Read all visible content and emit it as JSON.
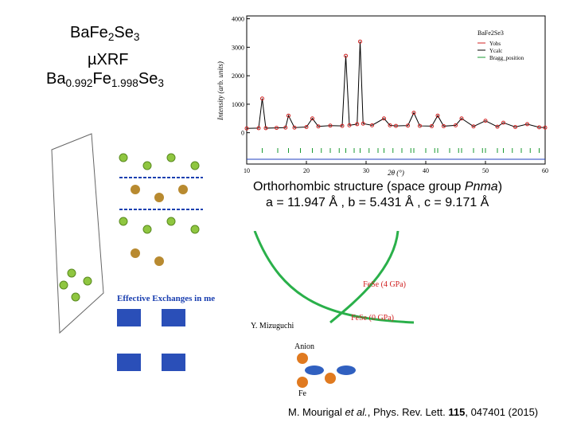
{
  "title": {
    "parts": [
      "BaFe",
      "2",
      "Se",
      "3"
    ]
  },
  "method": "µXRF",
  "composition": {
    "parts": [
      "Ba",
      "0.992",
      "Fe",
      "1.998",
      "Se",
      "3"
    ]
  },
  "structure": {
    "line1": {
      "parts": [
        "Orthorhombic structure (space group ",
        "Pnma",
        ")"
      ]
    },
    "line2": "a = 11.947 Å , b = 5.431 Å ,  c = 9.171 Å"
  },
  "citation": {
    "parts": [
      "M. Mourigal ",
      "et al.",
      ", Phys. Rev. Lett. ",
      "115",
      ", 047401 (2015)"
    ]
  },
  "xrd": {
    "y_label": "Intensity (arb. units)",
    "x_label": "2θ (°)",
    "legend": {
      "title": "BaFe2Se3",
      "entries": [
        "Yobs",
        "Ycalc",
        "Bragg_position"
      ]
    },
    "xlim": [
      10,
      60
    ],
    "ylim": [
      -1100,
      4100
    ],
    "xticks": [
      10,
      20,
      30,
      40,
      50,
      60
    ],
    "yticks": [
      0,
      1000,
      2000,
      3000,
      4000
    ],
    "x": [
      10,
      12,
      12.6,
      13.2,
      15,
      16.5,
      17,
      18,
      20,
      21,
      22,
      24,
      26,
      26.6,
      27.2,
      28.5,
      29,
      29.5,
      31,
      33,
      34,
      35,
      37,
      38,
      39,
      41,
      42,
      43,
      45,
      46,
      48,
      50,
      52,
      53,
      55,
      57,
      59,
      60
    ],
    "y": [
      150,
      160,
      1200,
      160,
      170,
      180,
      600,
      180,
      200,
      500,
      220,
      250,
      240,
      2700,
      260,
      300,
      3200,
      320,
      260,
      500,
      260,
      240,
      250,
      700,
      240,
      230,
      600,
      230,
      260,
      500,
      220,
      420,
      210,
      350,
      200,
      300,
      190,
      180
    ],
    "bragg": [
      12.6,
      15.2,
      17,
      19,
      21,
      22.5,
      24,
      25.5,
      26.6,
      28,
      29,
      30.5,
      32,
      33,
      34.5,
      36,
      37.5,
      38,
      40,
      41.5,
      42,
      44,
      45.5,
      46,
      48,
      49.5,
      50,
      52,
      53,
      54.5,
      56,
      57.5,
      59
    ]
  },
  "figure_labels": {
    "exchanges": "Effective Exchanges in meV",
    "author": "Y. Mizuguchi",
    "fese4": "FeSe (4 GPa)",
    "fese0": "FeSe (0 GPa)",
    "anion": "Anion",
    "fe": "Fe"
  }
}
